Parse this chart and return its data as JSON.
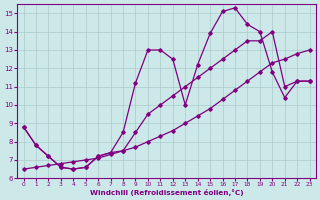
{
  "title": "",
  "xlabel": "Windchill (Refroidissement éolien,°C)",
  "ylabel": "",
  "xlim": [
    -0.5,
    23.5
  ],
  "ylim": [
    6,
    15.5
  ],
  "yticks": [
    6,
    7,
    8,
    9,
    10,
    11,
    12,
    13,
    14,
    15
  ],
  "xticks": [
    0,
    1,
    2,
    3,
    4,
    5,
    6,
    7,
    8,
    9,
    10,
    11,
    12,
    13,
    14,
    15,
    16,
    17,
    18,
    19,
    20,
    21,
    22,
    23
  ],
  "line_color": "#800080",
  "bg_color": "#cce8e8",
  "grid_color": "#aacccc",
  "series": [
    {
      "x": [
        0,
        1,
        2,
        3,
        4,
        5,
        6,
        7,
        8,
        9,
        10,
        11,
        12,
        13,
        14,
        15,
        16,
        17,
        18,
        19,
        20,
        21,
        22,
        23
      ],
      "y": [
        8.8,
        7.8,
        7.2,
        6.6,
        6.5,
        6.6,
        7.2,
        7.4,
        8.5,
        11.2,
        13.0,
        13.0,
        12.5,
        10.0,
        12.2,
        13.9,
        15.1,
        15.3,
        14.4,
        14.0,
        11.8,
        10.4,
        11.3,
        11.3
      ]
    },
    {
      "x": [
        0,
        1,
        2,
        3,
        4,
        5,
        6,
        7,
        8,
        9,
        10,
        11,
        12,
        13,
        14,
        15,
        16,
        17,
        18,
        19,
        20,
        21,
        22,
        23
      ],
      "y": [
        6.5,
        6.6,
        6.7,
        6.8,
        6.9,
        7.0,
        7.1,
        7.3,
        7.5,
        7.7,
        8.0,
        8.3,
        8.6,
        9.0,
        9.4,
        9.8,
        10.3,
        10.8,
        11.3,
        11.8,
        12.3,
        12.5,
        12.8,
        13.0
      ]
    },
    {
      "x": [
        0,
        1,
        2,
        3,
        4,
        5,
        6,
        7,
        8,
        9,
        10,
        11,
        12,
        13,
        14,
        15,
        16,
        17,
        18,
        19,
        20,
        21,
        22,
        23
      ],
      "y": [
        8.8,
        7.8,
        7.2,
        6.6,
        6.5,
        6.6,
        7.2,
        7.4,
        7.5,
        8.5,
        9.5,
        10.0,
        10.5,
        11.0,
        11.5,
        12.0,
        12.5,
        13.0,
        13.5,
        13.5,
        14.0,
        11.0,
        11.3,
        11.3
      ]
    }
  ]
}
